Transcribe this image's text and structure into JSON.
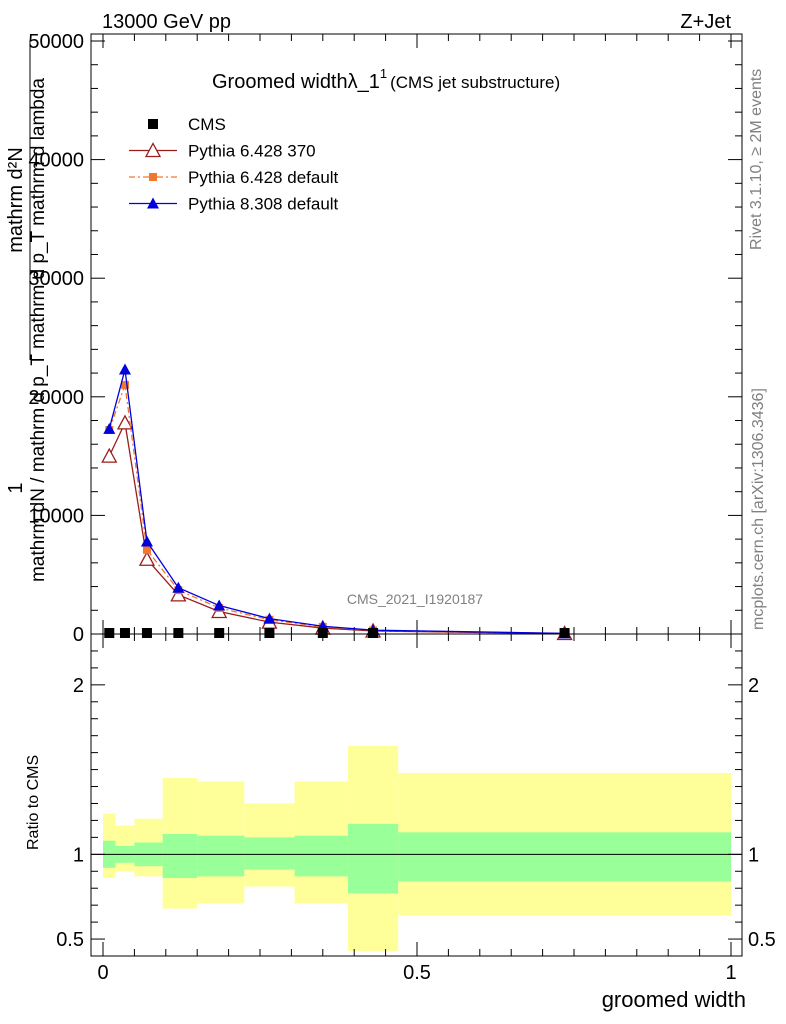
{
  "header": {
    "energy": "13000 GeV pp",
    "process": "Z+Jet"
  },
  "side_labels": {
    "rivet": "Rivet 3.1.10, ≥ 2M events",
    "mcplots": "mcplots.cern.ch [arXiv:1306.3436]"
  },
  "chart_data": [
    {
      "type": "line",
      "title_main": "Groomed width",
      "title_sym": "λ_1",
      "title_sup": "1",
      "title_sub": "(CMS jet substructure)",
      "watermark": "CMS_2021_I1920187",
      "ylabel_top": "1",
      "ylabel_num": "mathrm d²N",
      "ylabel_den": "mathrm dN / mathrm d p_T mathrm d p_T mathrm d lambda",
      "xlim": [
        0,
        1
      ],
      "ylim": [
        0,
        50000
      ],
      "yticks": [
        {
          "v": 0,
          "label": "0"
        },
        {
          "v": 10000,
          "label": "10000"
        },
        {
          "v": 20000,
          "label": "20000"
        },
        {
          "v": 30000,
          "label": "30000"
        },
        {
          "v": 40000,
          "label": "40000"
        },
        {
          "v": 50000,
          "label": "50000"
        }
      ],
      "legend_position": "top-left",
      "series": [
        {
          "name": "CMS",
          "marker": "square",
          "color": "#000000",
          "x": [
            0.01,
            0.035,
            0.07,
            0.12,
            0.185,
            0.265,
            0.35,
            0.43,
            0.735
          ],
          "y": [
            0,
            0,
            0,
            0,
            0,
            0,
            0,
            0,
            0
          ]
        },
        {
          "name": "Pythia 6.428 370",
          "marker": "open-triangle",
          "color": "#9b1c1c",
          "x": [
            0.01,
            0.035,
            0.07,
            0.12,
            0.185,
            0.265,
            0.35,
            0.43,
            0.735
          ],
          "y": [
            15000,
            17800,
            6300,
            3300,
            1900,
            1000,
            500,
            250,
            40
          ]
        },
        {
          "name": "Pythia 6.428 default",
          "marker": "filled-square-dashdot",
          "color": "#f07830",
          "x": [
            0.01,
            0.035,
            0.07,
            0.12,
            0.185,
            0.265,
            0.35,
            0.43,
            0.735
          ],
          "y": [
            17200,
            21000,
            7100,
            3700,
            2200,
            1200,
            600,
            300,
            50
          ]
        },
        {
          "name": "Pythia 8.308 default",
          "marker": "filled-triangle",
          "color": "#0000dd",
          "x": [
            0.01,
            0.035,
            0.07,
            0.12,
            0.185,
            0.265,
            0.35,
            0.43,
            0.735
          ],
          "y": [
            17300,
            22300,
            7800,
            3900,
            2400,
            1300,
            650,
            320,
            55
          ]
        }
      ]
    },
    {
      "type": "area",
      "ylabel": "Ratio to CMS",
      "xlabel": "groomed width",
      "xlim": [
        0,
        1
      ],
      "ylim": [
        0.4,
        2.3
      ],
      "xticks": [
        {
          "v": 0,
          "label": "0"
        },
        {
          "v": 0.5,
          "label": "0.5"
        },
        {
          "v": 1,
          "label": "1"
        }
      ],
      "yticks": [
        {
          "v": 0.5,
          "label": "0.5"
        },
        {
          "v": 1,
          "label": "1"
        },
        {
          "v": 2,
          "label": "2"
        }
      ],
      "reference_line": 1,
      "bands": {
        "edges": [
          0.0,
          0.02,
          0.05,
          0.095,
          0.15,
          0.225,
          0.305,
          0.39,
          0.47,
          1.0
        ],
        "inner_color": "#99ff99",
        "outer_color": "#ffff99",
        "inner_lo": [
          0.92,
          0.95,
          0.93,
          0.86,
          0.87,
          0.91,
          0.87,
          0.77,
          0.84
        ],
        "inner_hi": [
          1.08,
          1.05,
          1.07,
          1.12,
          1.11,
          1.1,
          1.11,
          1.18,
          1.13
        ],
        "outer_lo": [
          0.86,
          0.9,
          0.87,
          0.68,
          0.71,
          0.81,
          0.71,
          0.43,
          0.64
        ],
        "outer_hi": [
          1.24,
          1.17,
          1.21,
          1.45,
          1.43,
          1.3,
          1.43,
          1.64,
          1.48
        ]
      }
    }
  ]
}
